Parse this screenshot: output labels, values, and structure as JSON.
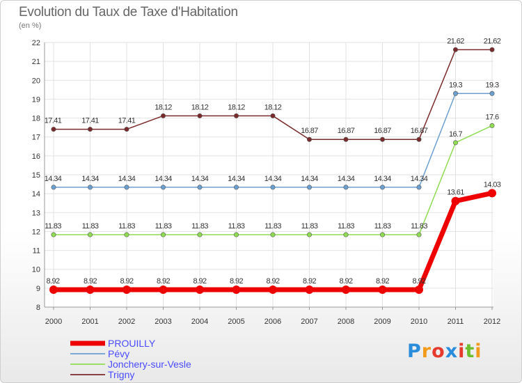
{
  "chart_data": {
    "type": "line",
    "title": "Evolution du Taux de Taxe d'Habitation",
    "subtitle": "(en %)",
    "x": [
      "2000",
      "2001",
      "2002",
      "2003",
      "2004",
      "2005",
      "2006",
      "2007",
      "2008",
      "2009",
      "2010",
      "2011",
      "2012"
    ],
    "ylim": [
      8,
      22
    ],
    "yticks": [
      "8",
      "9",
      "10",
      "11",
      "12",
      "13",
      "14",
      "15",
      "16",
      "17",
      "18",
      "19",
      "20",
      "21",
      "22"
    ],
    "grid": true,
    "series": [
      {
        "name": "PROUILLY",
        "color": "#ee0000",
        "values": [
          8.92,
          8.92,
          8.92,
          8.92,
          8.92,
          8.92,
          8.92,
          8.92,
          8.92,
          8.92,
          8.92,
          13.61,
          14.03
        ],
        "labels": [
          "8.92",
          "8.92",
          "8.92",
          "8.92",
          "8.92",
          "8.92",
          "8.92",
          "8.92",
          "8.92",
          "8.92",
          "8.92",
          "13.61",
          "14.03"
        ]
      },
      {
        "name": "Pévy",
        "color": "#6b9fd0",
        "values": [
          14.34,
          14.34,
          14.34,
          14.34,
          14.34,
          14.34,
          14.34,
          14.34,
          14.34,
          14.34,
          14.34,
          19.3,
          19.3
        ],
        "labels": [
          "14.34",
          "14.34",
          "14.34",
          "14.34",
          "14.34",
          "14.34",
          "14.34",
          "14.34",
          "14.34",
          "14.34",
          "14.34",
          "19.3",
          "19.3"
        ]
      },
      {
        "name": "Jonchery-sur-Vesle",
        "color": "#8fdc52",
        "values": [
          11.83,
          11.83,
          11.83,
          11.83,
          11.83,
          11.83,
          11.83,
          11.83,
          11.83,
          11.83,
          11.83,
          16.7,
          17.6
        ],
        "labels": [
          "11.83",
          "11.83",
          "11.83",
          "11.83",
          "11.83",
          "11.83",
          "11.83",
          "11.83",
          "11.83",
          "11.83",
          "11.83",
          "16.7",
          "17.6"
        ]
      },
      {
        "name": "Trigny",
        "color": "#7a2a2a",
        "values": [
          17.41,
          17.41,
          17.41,
          18.12,
          18.12,
          18.12,
          18.12,
          16.87,
          16.87,
          16.87,
          16.87,
          21.62,
          21.62
        ],
        "labels": [
          "17.41",
          "17.41",
          "17.41",
          "18.12",
          "18.12",
          "18.12",
          "18.12",
          "16.87",
          "16.87",
          "16.87",
          "16.87",
          "21.62",
          "21.62"
        ]
      }
    ],
    "legend": {
      "position": "bottom-left",
      "text_color": "#4a4aff",
      "items": [
        "PROUILLY",
        "Pévy",
        "Jonchery-sur-Vesle",
        "Trigny"
      ]
    }
  },
  "logo": {
    "text": "Proxiti",
    "letters": [
      {
        "ch": "P",
        "color": "#2a8ddb"
      },
      {
        "ch": "r",
        "color": "#f29a1a"
      },
      {
        "ch": "o",
        "color": "#e63a2c"
      },
      {
        "ch": "x",
        "color": "#2a8ddb"
      },
      {
        "ch": "i",
        "color": "#e63a2c"
      },
      {
        "ch": "t",
        "color": "#6dbf2e"
      },
      {
        "ch": "i",
        "color": "#f29a1a"
      }
    ]
  }
}
